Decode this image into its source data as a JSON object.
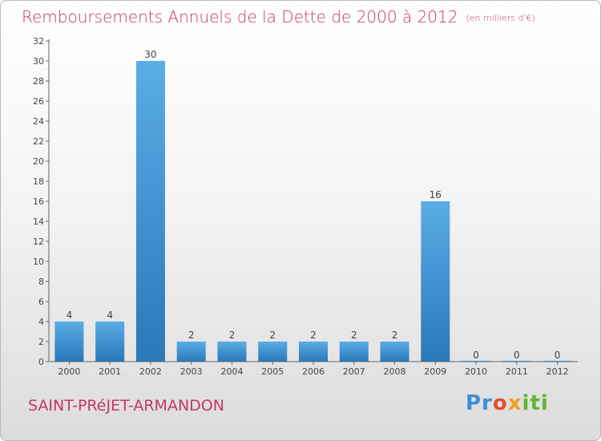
{
  "header": {
    "title": "Remboursements Annuels de la Dette de 2000 à 2012",
    "unit": "(en milliers d'€)"
  },
  "footer": {
    "place": "SAINT-PRéJET-ARMANDON",
    "logo": [
      "Pr",
      "o",
      "x",
      "iti"
    ]
  },
  "colors": {
    "title": "#c2366a",
    "bar_top": "#5aade6",
    "bar_bottom": "#2a78b8"
  },
  "chart_data": {
    "type": "bar",
    "categories": [
      "2000",
      "2001",
      "2002",
      "2003",
      "2004",
      "2005",
      "2006",
      "2007",
      "2008",
      "2009",
      "2010",
      "2011",
      "2012"
    ],
    "values": [
      4,
      4,
      30,
      2,
      2,
      2,
      2,
      2,
      2,
      16,
      0,
      0,
      0
    ],
    "ylim": [
      0,
      32
    ],
    "yticks": [
      0,
      2,
      4,
      6,
      8,
      10,
      12,
      14,
      16,
      18,
      20,
      22,
      24,
      26,
      28,
      30,
      32
    ],
    "grid": false,
    "legend": "none"
  }
}
